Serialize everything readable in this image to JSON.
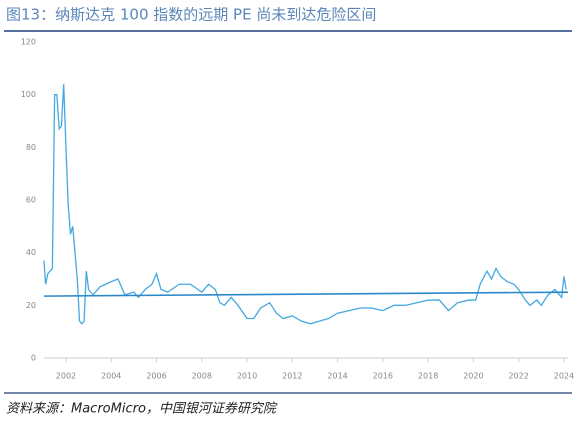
{
  "title": "图13：纳斯达克 100 指数的远期 PE 尚未到达危险区间",
  "source": "资料来源：MacroMicro，中国银河证券研究院",
  "chart_data": {
    "type": "line",
    "xlim": [
      2001.03,
      2024.18
    ],
    "xticks": [
      2002,
      2004,
      2006,
      2008,
      2010,
      2012,
      2014,
      2016,
      2018,
      2020,
      2022,
      2024
    ],
    "ylim": [
      0,
      120
    ],
    "yticks": [
      0,
      20,
      40,
      60,
      80,
      100,
      120
    ],
    "grid": false,
    "series": [
      {
        "color": "#45a9e0",
        "x": [
          2001.03,
          2001.1,
          2001.2,
          2001.4,
          2001.5,
          2001.6,
          2001.7,
          2001.8,
          2001.9,
          2002.0,
          2002.1,
          2002.2,
          2002.3,
          2002.4,
          2002.5,
          2002.6,
          2002.7,
          2002.8,
          2002.9,
          2003.0,
          2003.2,
          2003.5,
          2004.0,
          2004.3,
          2004.6,
          2005.0,
          2005.2,
          2005.5,
          2005.8,
          2006.0,
          2006.2,
          2006.5,
          2007.0,
          2007.5,
          2008.0,
          2008.3,
          2008.6,
          2008.8,
          2009.0,
          2009.3,
          2009.6,
          2010.0,
          2010.3,
          2010.6,
          2011.0,
          2011.3,
          2011.6,
          2012.0,
          2012.4,
          2012.8,
          2013.2,
          2013.6,
          2014.0,
          2014.5,
          2015.0,
          2015.5,
          2016.0,
          2016.5,
          2017.0,
          2017.5,
          2018.0,
          2018.5,
          2018.9,
          2019.3,
          2019.8,
          2020.1,
          2020.3,
          2020.6,
          2020.8,
          2021.0,
          2021.2,
          2021.5,
          2021.8,
          2022.0,
          2022.3,
          2022.5,
          2022.8,
          2023.0,
          2023.3,
          2023.6,
          2023.9,
          2024.0,
          2024.1
        ],
        "values": [
          37,
          28,
          32,
          34,
          100,
          100,
          87,
          88,
          104,
          80,
          58,
          47,
          50,
          40,
          30,
          14,
          13,
          14,
          33,
          26,
          24,
          27,
          29,
          30,
          24,
          25,
          23,
          26,
          28,
          32,
          26,
          25,
          28,
          28,
          25,
          28,
          26,
          21,
          20,
          23,
          20,
          15,
          15,
          19,
          21,
          17,
          15,
          16,
          14,
          13,
          14,
          15,
          17,
          18,
          19,
          19,
          18,
          20,
          20,
          21,
          22,
          22,
          18,
          21,
          22,
          22,
          28,
          33,
          30,
          34,
          31,
          29,
          28,
          26,
          22,
          20,
          22,
          20,
          24,
          26,
          23,
          31,
          26
        ]
      },
      {
        "color": "#2a88c8",
        "x": [
          2001.03,
          2024.18
        ],
        "values": [
          23.5,
          25
        ]
      }
    ]
  }
}
